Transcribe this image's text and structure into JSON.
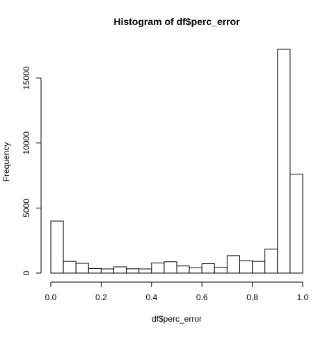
{
  "chart_data": {
    "type": "bar",
    "title": "Histogram of df$perc_error",
    "xlabel": "df$perc_error",
    "ylabel": "Frequency",
    "xlim": [
      0,
      1
    ],
    "ylim": [
      0,
      17200
    ],
    "grid": false,
    "legend": "none",
    "bin_edges": [
      0,
      0.05,
      0.1,
      0.15,
      0.2,
      0.25,
      0.3,
      0.35,
      0.4,
      0.45,
      0.5,
      0.55,
      0.6,
      0.65,
      0.7,
      0.75,
      0.8,
      0.85,
      0.9,
      0.95,
      1.0
    ],
    "values": [
      4000,
      900,
      750,
      350,
      320,
      480,
      330,
      320,
      780,
      870,
      550,
      400,
      720,
      450,
      1340,
      950,
      900,
      1850,
      17200,
      7600
    ],
    "x_ticks": [
      0.0,
      0.2,
      0.4,
      0.6,
      0.8,
      1.0
    ],
    "x_tick_labels": [
      "0.0",
      "0.2",
      "0.4",
      "0.6",
      "0.8",
      "1.0"
    ],
    "y_ticks": [
      0,
      5000,
      10000,
      15000
    ],
    "y_tick_labels": [
      "0",
      "5000",
      "10000",
      "15000"
    ],
    "colors": {
      "bar_fill": "#ffffff",
      "bar_stroke": "#000000",
      "background": "#ffffff"
    }
  }
}
